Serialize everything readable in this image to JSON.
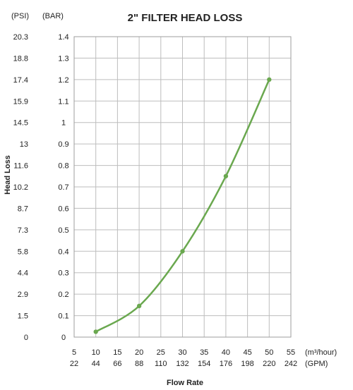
{
  "chart_data": {
    "type": "line",
    "title": "2\" FILTER HEAD LOSS",
    "xlabel": "Flow Rate",
    "ylabel": "Head Loss",
    "y_unit_left": "(PSI)",
    "y_unit_right": "(BAR)",
    "x_unit_top": "(m³/hour)",
    "x_unit_bottom": "(GPM)",
    "x_ticks_m3h": [
      "5",
      "10",
      "15",
      "20",
      "25",
      "30",
      "35",
      "40",
      "45",
      "50",
      "55"
    ],
    "x_ticks_gpm": [
      "22",
      "44",
      "66",
      "88",
      "110",
      "132",
      "154",
      "176",
      "198",
      "220",
      "242"
    ],
    "y_ticks_bar": [
      "0",
      "0.1",
      "0.2",
      "0.3",
      "0.4",
      "0.5",
      "0.6",
      "0.7",
      "0.8",
      "0.9",
      "1",
      "1.1",
      "1.2",
      "1.3",
      "1.4"
    ],
    "y_ticks_psi": [
      "0",
      "1.5",
      "2.9",
      "4.4",
      "5.8",
      "7.3",
      "8.7",
      "10.2",
      "11.6",
      "13",
      "14.5",
      "15.9",
      "17.4",
      "18.8",
      "20.3"
    ],
    "xlim": [
      5,
      55
    ],
    "ylim": [
      0,
      1.4
    ],
    "grid": true,
    "series": [
      {
        "x": [
          10,
          20,
          30,
          40,
          50
        ],
        "y": [
          0.025,
          0.145,
          0.4,
          0.75,
          1.2
        ]
      }
    ],
    "colors": {
      "line": "#6aa84f",
      "marker": "#6aa84f"
    }
  }
}
